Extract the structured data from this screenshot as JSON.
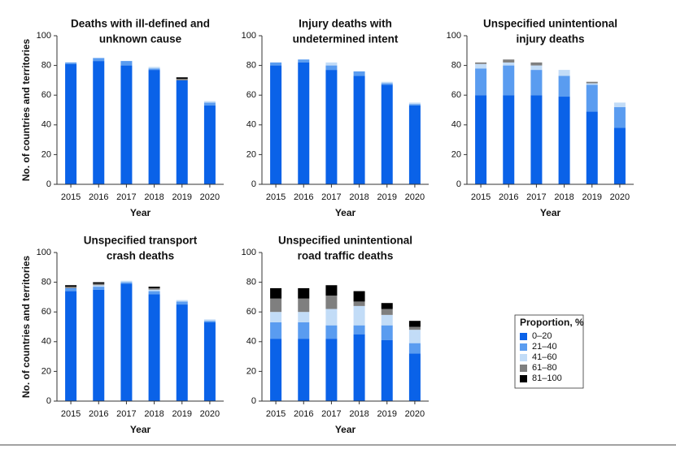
{
  "legend_title": "Proportion, %",
  "chart_data": [
    {
      "type": "bar",
      "stacked": true,
      "title": [
        "Deaths with ill-defined and",
        "unknown cause"
      ],
      "xlabel": "Year",
      "ylabel": "No. of countries and territories",
      "categories": [
        "2015",
        "2016",
        "2017",
        "2018",
        "2019",
        "2020"
      ],
      "ylim": [
        0,
        100
      ],
      "yticks": [
        0,
        20,
        40,
        60,
        80,
        100
      ],
      "series": [
        {
          "name": "0–20",
          "color": "#0a62e8",
          "values": [
            81,
            83,
            80,
            77,
            70,
            53
          ]
        },
        {
          "name": "21–40",
          "color": "#5a9cf0",
          "values": [
            1,
            2,
            3,
            1,
            0,
            2
          ]
        },
        {
          "name": "41–60",
          "color": "#c2dcf7",
          "values": [
            0,
            0,
            0,
            1,
            0,
            1
          ]
        },
        {
          "name": "61–80",
          "color": "#7f7f7f",
          "values": [
            0,
            0,
            0,
            0,
            1,
            0
          ]
        },
        {
          "name": "81–100",
          "color": "#000000",
          "values": [
            0,
            0,
            0,
            0,
            1,
            0
          ]
        }
      ]
    },
    {
      "type": "bar",
      "stacked": true,
      "title": [
        "Injury deaths with",
        "undetermined intent"
      ],
      "xlabel": "Year",
      "categories": [
        "2015",
        "2016",
        "2017",
        "2018",
        "2019",
        "2020"
      ],
      "ylim": [
        0,
        100
      ],
      "yticks": [
        0,
        20,
        40,
        60,
        80,
        100
      ],
      "series": [
        {
          "name": "0–20",
          "color": "#0a62e8",
          "values": [
            80,
            82,
            77,
            73,
            67,
            53
          ]
        },
        {
          "name": "21–40",
          "color": "#5a9cf0",
          "values": [
            2,
            2,
            3,
            3,
            1,
            1
          ]
        },
        {
          "name": "41–60",
          "color": "#c2dcf7",
          "values": [
            0,
            0,
            2,
            0,
            1,
            1
          ]
        },
        {
          "name": "61–80",
          "color": "#7f7f7f",
          "values": [
            0,
            0,
            0,
            0,
            0,
            0
          ]
        },
        {
          "name": "81–100",
          "color": "#000000",
          "values": [
            0,
            0,
            0,
            0,
            0,
            0
          ]
        }
      ]
    },
    {
      "type": "bar",
      "stacked": true,
      "title": [
        "Unspecified unintentional",
        "injury deaths"
      ],
      "xlabel": "Year",
      "categories": [
        "2015",
        "2016",
        "2017",
        "2018",
        "2019",
        "2020"
      ],
      "ylim": [
        0,
        100
      ],
      "yticks": [
        0,
        20,
        40,
        60,
        80,
        100
      ],
      "series": [
        {
          "name": "0–20",
          "color": "#0a62e8",
          "values": [
            60,
            60,
            60,
            59,
            49,
            38
          ]
        },
        {
          "name": "21–40",
          "color": "#5a9cf0",
          "values": [
            18,
            20,
            17,
            14,
            18,
            14
          ]
        },
        {
          "name": "41–60",
          "color": "#c2dcf7",
          "values": [
            3,
            2,
            3,
            4,
            1,
            3
          ]
        },
        {
          "name": "61–80",
          "color": "#7f7f7f",
          "values": [
            1,
            2,
            2,
            0,
            1,
            0
          ]
        },
        {
          "name": "81–100",
          "color": "#000000",
          "values": [
            0,
            0,
            0,
            0,
            0,
            0
          ]
        }
      ]
    },
    {
      "type": "bar",
      "stacked": true,
      "title": [
        "Unspecified transport",
        "crash deaths"
      ],
      "xlabel": "Year",
      "ylabel": "No. of countries and territories",
      "categories": [
        "2015",
        "2016",
        "2017",
        "2018",
        "2019",
        "2020"
      ],
      "ylim": [
        0,
        100
      ],
      "yticks": [
        0,
        20,
        40,
        60,
        80,
        100
      ],
      "series": [
        {
          "name": "0–20",
          "color": "#0a62e8",
          "values": [
            74,
            75,
            79,
            72,
            65,
            53
          ]
        },
        {
          "name": "21–40",
          "color": "#5a9cf0",
          "values": [
            2,
            2,
            1,
            2,
            2,
            1
          ]
        },
        {
          "name": "41–60",
          "color": "#c2dcf7",
          "values": [
            0,
            1,
            1,
            1,
            1,
            1
          ]
        },
        {
          "name": "61–80",
          "color": "#7f7f7f",
          "values": [
            1,
            1,
            0,
            1,
            0,
            0
          ]
        },
        {
          "name": "81–100",
          "color": "#000000",
          "values": [
            1,
            1,
            0,
            1,
            0,
            0
          ]
        }
      ]
    },
    {
      "type": "bar",
      "stacked": true,
      "title": [
        "Unspecified unintentional",
        "road traffic deaths"
      ],
      "xlabel": "Year",
      "categories": [
        "2015",
        "2016",
        "2017",
        "2018",
        "2019",
        "2020"
      ],
      "ylim": [
        0,
        100
      ],
      "yticks": [
        0,
        20,
        40,
        60,
        80,
        100
      ],
      "series": [
        {
          "name": "0–20",
          "color": "#0a62e8",
          "values": [
            42,
            42,
            42,
            45,
            41,
            32
          ]
        },
        {
          "name": "21–40",
          "color": "#5a9cf0",
          "values": [
            11,
            11,
            9,
            6,
            10,
            7
          ]
        },
        {
          "name": "41–60",
          "color": "#c2dcf7",
          "values": [
            7,
            7,
            11,
            13,
            7,
            9
          ]
        },
        {
          "name": "61–80",
          "color": "#7f7f7f",
          "values": [
            9,
            9,
            9,
            3,
            4,
            2
          ]
        },
        {
          "name": "81–100",
          "color": "#000000",
          "values": [
            7,
            7,
            7,
            7,
            4,
            4
          ]
        }
      ]
    }
  ]
}
